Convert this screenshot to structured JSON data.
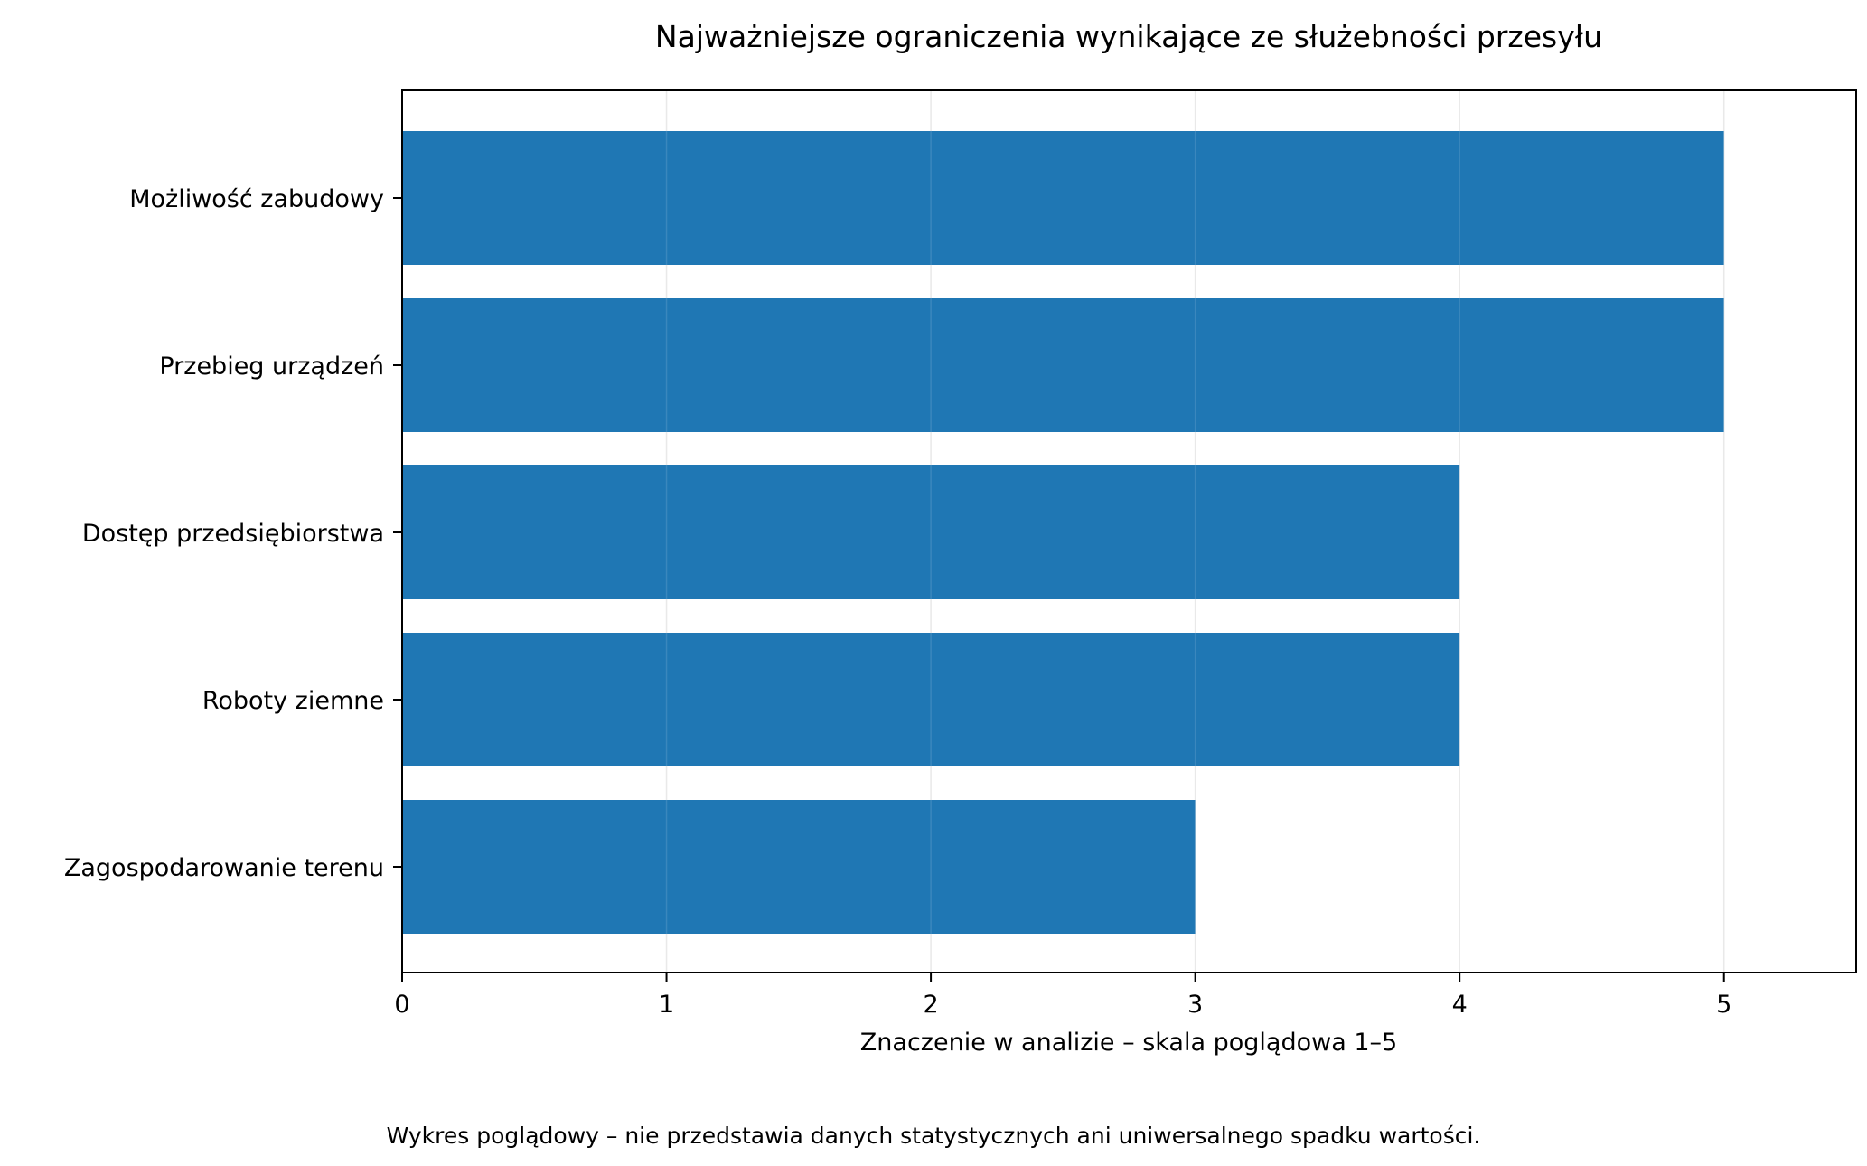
{
  "chart_data": {
    "type": "bar",
    "orientation": "horizontal",
    "title": "Najważniejsze ograniczenia wynikające ze służebności przesyłu",
    "categories": [
      "Możliwość zabudowy",
      "Przebieg urządzeń",
      "Dostęp przedsiębiorstwa",
      "Roboty ziemne",
      "Zagospodarowanie terenu"
    ],
    "values": [
      5,
      5,
      4,
      4,
      3
    ],
    "xlabel": "Znaczenie w analizie – skala poglądowa 1–5",
    "ylabel": "",
    "xlim": [
      0,
      5.5
    ],
    "xticks": [
      0,
      1,
      2,
      3,
      4,
      5
    ],
    "grid": "x",
    "legend": "none",
    "bar_color": "#1f77b4",
    "footnote": "Wykres poglądowy – nie przedstawia danych statystycznych ani uniwersalnego spadku wartości."
  }
}
